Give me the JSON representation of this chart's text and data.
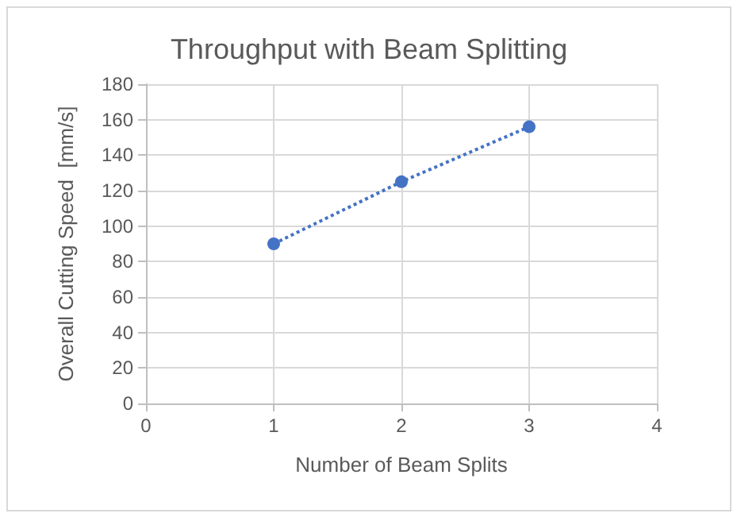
{
  "chart_data": {
    "type": "line",
    "title": "Throughput with Beam Splitting",
    "xlabel": "Number of Beam Splits",
    "ylabel": "Overall Cutting Speed  [mm/s]",
    "series": [
      {
        "color": "#4472c4",
        "x": [
          1,
          2,
          3
        ],
        "values": [
          90,
          125,
          156
        ]
      }
    ],
    "xlim": [
      0,
      4
    ],
    "xticks": [
      0,
      1,
      2,
      3,
      4
    ],
    "ylim": [
      0,
      180
    ],
    "yticks": [
      0,
      20,
      40,
      60,
      80,
      100,
      120,
      140,
      160,
      180
    ],
    "grid": true,
    "marker": "circle",
    "line_style": "dotted"
  }
}
